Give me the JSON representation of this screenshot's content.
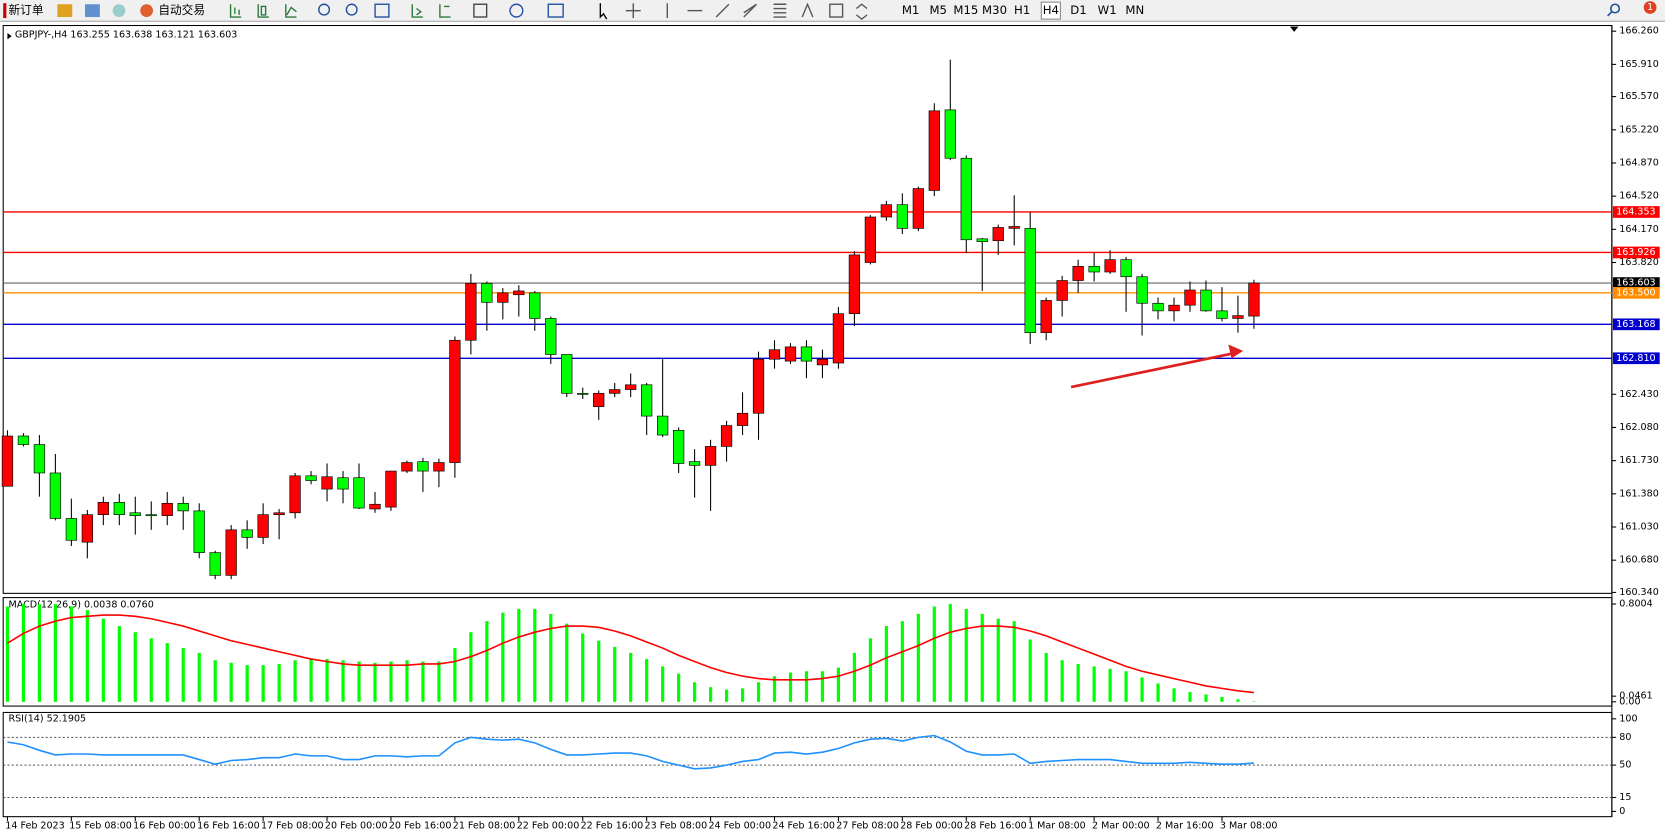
{
  "toolbar": {
    "buttons": [
      "新订单",
      "自动交易"
    ],
    "timeframes": [
      "M1",
      "M5",
      "M15",
      "M30",
      "H1",
      "H4",
      "D1",
      "W1",
      "MN"
    ],
    "badge": "1"
  },
  "chart_data": [
    {
      "type": "candlestick",
      "title": "GBPJPY-,H4 163.255 163.638 163.121 163.603",
      "up_color": "#ff0000",
      "down_color": "#00ff00",
      "categories": [
        "14 Feb 2023",
        null,
        null,
        null,
        "15 Feb 08:00",
        null,
        null,
        null,
        "16 Feb 00:00",
        null,
        null,
        null,
        "16 Feb 16:00",
        null,
        null,
        null,
        "17 Feb 08:00",
        null,
        null,
        null,
        "20 Feb 00:00",
        null,
        null,
        null,
        "20 Feb 16:00",
        null,
        null,
        null,
        "21 Feb 08:00",
        null,
        null,
        null,
        "22 Feb 00:00",
        null,
        null,
        null,
        "22 Feb 16:00",
        null,
        null,
        null,
        "23 Feb 08:00",
        null,
        null,
        null,
        "24 Feb 00:00",
        null,
        null,
        null,
        "24 Feb 16:00",
        null,
        null,
        null,
        "27 Feb 08:00",
        null,
        null,
        null,
        "28 Feb 00:00",
        null,
        null,
        null,
        "28 Feb 16:00",
        null,
        null,
        null,
        "1 Mar 08:00",
        null,
        null,
        null,
        "2 Mar 00:00",
        null,
        null,
        null,
        "2 Mar 16:00",
        null,
        null,
        null,
        "3 Mar 08:00",
        null,
        null
      ],
      "open": [
        161.46,
        161.99,
        161.9,
        161.6,
        161.12,
        160.87,
        161.16,
        161.29,
        161.18,
        161.16,
        161.15,
        161.28,
        161.2,
        160.76,
        160.52,
        161.0,
        160.92,
        161.16,
        161.18,
        161.57,
        161.43,
        161.55,
        161.55,
        161.22,
        161.24,
        161.62,
        161.72,
        161.62,
        161.71,
        163.0,
        163.6,
        163.4,
        163.48,
        163.5,
        163.23,
        162.85,
        162.44,
        162.3,
        162.44,
        162.48,
        162.53,
        162.2,
        162.05,
        161.72,
        161.68,
        161.88,
        162.1,
        162.23,
        162.8,
        162.78,
        162.93,
        162.74,
        162.76,
        163.28,
        163.82,
        164.3,
        164.43,
        164.18,
        164.58,
        165.43,
        164.92,
        164.07,
        164.05,
        164.18,
        164.18,
        163.08,
        163.42,
        163.63,
        163.78,
        163.72,
        163.85,
        163.67,
        163.39,
        163.31,
        163.37,
        163.53,
        163.31,
        163.23,
        163.255
      ],
      "high": [
        162.05,
        162.02,
        162.0,
        161.8,
        161.33,
        161.21,
        161.35,
        161.38,
        161.35,
        161.3,
        161.4,
        161.35,
        161.28,
        160.78,
        161.05,
        161.1,
        161.28,
        161.22,
        161.6,
        161.62,
        161.7,
        161.62,
        161.7,
        161.4,
        161.62,
        161.73,
        161.76,
        161.75,
        163.04,
        163.7,
        163.62,
        163.55,
        163.58,
        163.52,
        163.25,
        162.85,
        162.5,
        162.47,
        162.55,
        162.65,
        162.55,
        162.8,
        162.08,
        161.85,
        161.95,
        162.15,
        162.45,
        162.88,
        163.0,
        162.97,
        163.0,
        162.9,
        163.35,
        163.94,
        164.32,
        164.47,
        164.55,
        164.62,
        165.5,
        165.96,
        164.95,
        164.08,
        164.22,
        164.53,
        164.35,
        163.45,
        163.68,
        163.85,
        163.92,
        163.95,
        163.88,
        163.7,
        163.45,
        163.45,
        163.62,
        163.63,
        163.56,
        163.47,
        163.638
      ],
      "low": [
        161.46,
        161.88,
        161.35,
        161.1,
        160.83,
        160.7,
        161.05,
        161.05,
        160.95,
        161.0,
        161.05,
        161.0,
        160.7,
        160.48,
        160.48,
        160.8,
        160.85,
        160.9,
        161.12,
        161.48,
        161.3,
        161.28,
        161.22,
        161.18,
        161.2,
        161.6,
        161.4,
        161.45,
        161.55,
        162.85,
        163.1,
        163.22,
        163.25,
        163.1,
        162.75,
        162.4,
        162.38,
        162.16,
        162.4,
        162.4,
        162.0,
        161.98,
        161.6,
        161.34,
        161.2,
        161.72,
        162.0,
        161.95,
        162.7,
        162.75,
        162.6,
        162.6,
        162.7,
        163.15,
        163.8,
        164.26,
        164.12,
        164.15,
        164.52,
        164.9,
        163.92,
        163.52,
        163.9,
        164.0,
        162.96,
        163.0,
        163.25,
        163.5,
        163.62,
        163.7,
        163.3,
        163.05,
        163.22,
        163.2,
        163.3,
        163.3,
        163.2,
        163.08,
        163.121
      ],
      "close": [
        161.99,
        161.9,
        161.6,
        161.12,
        160.89,
        161.16,
        161.29,
        161.16,
        161.15,
        161.15,
        161.28,
        161.2,
        160.76,
        160.52,
        161.0,
        160.92,
        161.16,
        161.18,
        161.57,
        161.52,
        161.56,
        161.43,
        161.23,
        161.27,
        161.62,
        161.71,
        161.62,
        161.71,
        163.0,
        163.6,
        163.4,
        163.5,
        163.52,
        163.23,
        162.85,
        162.44,
        162.43,
        162.44,
        162.48,
        162.53,
        162.2,
        162.0,
        161.7,
        161.68,
        161.88,
        162.1,
        162.23,
        162.8,
        162.9,
        162.93,
        162.78,
        162.8,
        163.28,
        163.9,
        164.3,
        164.43,
        164.18,
        164.6,
        165.42,
        164.92,
        164.06,
        164.04,
        164.19,
        164.2,
        163.08,
        163.42,
        163.63,
        163.78,
        163.72,
        163.85,
        163.67,
        163.39,
        163.31,
        163.37,
        163.53,
        163.31,
        163.23,
        163.26,
        163.603
      ],
      "ylim": [
        160.33,
        166.32
      ],
      "yticks": [
        {
          "value": 166.26,
          "label": "166.260"
        },
        {
          "value": 165.91,
          "label": "165.910"
        },
        {
          "value": 165.57,
          "label": "165.570"
        },
        {
          "value": 165.22,
          "label": "165.220"
        },
        {
          "value": 164.87,
          "label": "164.870"
        },
        {
          "value": 164.52,
          "label": "164.520"
        },
        {
          "value": 164.17,
          "label": "164.170"
        },
        {
          "value": 163.82,
          "label": "163.820"
        },
        {
          "value": 162.43,
          "label": "162.430"
        },
        {
          "value": 162.08,
          "label": "162.080"
        },
        {
          "value": 161.73,
          "label": "161.730"
        },
        {
          "value": 161.38,
          "label": "161.380"
        },
        {
          "value": 161.03,
          "label": "161.030"
        },
        {
          "value": 160.68,
          "label": "160.680"
        },
        {
          "value": 160.34,
          "label": "160.340"
        }
      ],
      "levels": [
        {
          "value": 164.353,
          "color": "#ff0000"
        },
        {
          "value": 163.926,
          "color": "#ff0000"
        },
        {
          "value": 163.603,
          "color": "#808080",
          "box": "#000000"
        },
        {
          "value": 163.5,
          "label": "163.500",
          "color": "#ff8c00"
        },
        {
          "value": 163.168,
          "color": "#0000cd"
        },
        {
          "value": 162.81,
          "label": "162.810",
          "color": "#0000cd"
        }
      ]
    },
    {
      "type": "macd",
      "title": "MACD(12,26,9) 0.0038 0.0760",
      "series": [
        {
          "color": "#00ff00",
          "values": [
            0.78,
            0.8,
            0.8,
            0.8,
            0.78,
            0.75,
            0.68,
            0.62,
            0.57,
            0.52,
            0.48,
            0.44,
            0.4,
            0.34,
            0.32,
            0.3,
            0.3,
            0.31,
            0.34,
            0.35,
            0.35,
            0.34,
            0.33,
            0.32,
            0.33,
            0.34,
            0.33,
            0.33,
            0.44,
            0.57,
            0.66,
            0.73,
            0.76,
            0.76,
            0.72,
            0.64,
            0.56,
            0.5,
            0.45,
            0.4,
            0.35,
            0.29,
            0.23,
            0.16,
            0.12,
            0.1,
            0.11,
            0.16,
            0.21,
            0.24,
            0.25,
            0.25,
            0.28,
            0.4,
            0.52,
            0.62,
            0.66,
            0.72,
            0.78,
            0.8,
            0.76,
            0.72,
            0.68,
            0.66,
            0.51,
            0.4,
            0.34,
            0.31,
            0.29,
            0.27,
            0.25,
            0.2,
            0.15,
            0.11,
            0.08,
            0.06,
            0.04,
            0.02,
            0.0038
          ]
        },
        {
          "color": "#ff0000",
          "values": [
            0.48,
            0.56,
            0.62,
            0.66,
            0.69,
            0.7,
            0.71,
            0.71,
            0.7,
            0.68,
            0.65,
            0.62,
            0.58,
            0.54,
            0.5,
            0.47,
            0.44,
            0.41,
            0.38,
            0.35,
            0.33,
            0.31,
            0.3,
            0.3,
            0.3,
            0.3,
            0.31,
            0.31,
            0.33,
            0.37,
            0.42,
            0.48,
            0.53,
            0.57,
            0.6,
            0.62,
            0.62,
            0.61,
            0.58,
            0.54,
            0.49,
            0.44,
            0.38,
            0.33,
            0.28,
            0.24,
            0.21,
            0.19,
            0.18,
            0.18,
            0.18,
            0.19,
            0.21,
            0.25,
            0.3,
            0.36,
            0.41,
            0.46,
            0.52,
            0.57,
            0.6,
            0.62,
            0.62,
            0.61,
            0.58,
            0.54,
            0.49,
            0.44,
            0.39,
            0.34,
            0.29,
            0.25,
            0.22,
            0.19,
            0.16,
            0.13,
            0.11,
            0.09,
            0.076
          ]
        }
      ],
      "ylim": [
        -0.035,
        0.853
      ],
      "yticks": [
        0.8004,
        {
          "value": 0,
          "label": "0.00"
        },
        0.0461
      ]
    },
    {
      "type": "line",
      "title": "RSI(14) 52.1905",
      "color": "#1e90ff",
      "values": [
        75,
        72,
        66,
        61,
        62,
        62,
        61,
        61,
        61,
        61,
        61,
        61,
        56,
        51,
        55,
        56,
        58,
        58,
        62,
        60,
        60,
        56,
        56,
        60,
        60,
        59,
        60,
        60,
        74,
        80,
        78,
        77,
        78,
        74,
        67,
        61,
        61,
        62,
        63,
        63,
        60,
        54,
        50,
        46,
        47,
        50,
        54,
        56,
        63,
        64,
        62,
        64,
        68,
        74,
        78,
        79,
        76,
        80,
        82,
        75,
        65,
        61,
        61,
        62,
        52,
        54,
        55,
        56,
        56,
        56,
        54,
        52,
        52,
        52,
        53,
        52,
        51,
        51,
        52.1905
      ],
      "ylim": [
        -5.7,
        106.9
      ],
      "yticks": [
        100,
        80,
        50,
        15,
        0
      ],
      "levels": [
        80,
        50,
        15
      ]
    }
  ]
}
